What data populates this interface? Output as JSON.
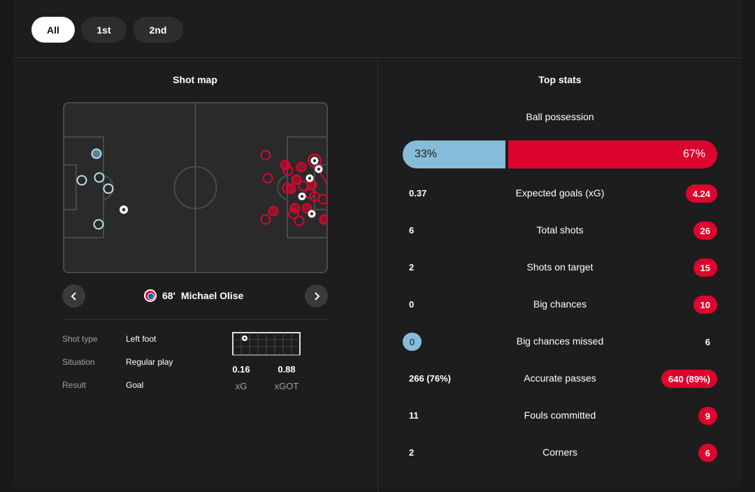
{
  "filters": {
    "all": "All",
    "first": "1st",
    "second": "2nd"
  },
  "shotmap": {
    "title": "Shot map",
    "selected_player": {
      "minute": "68'",
      "name": "Michael Olise"
    },
    "details": [
      {
        "label": "Shot type",
        "value": "Left foot"
      },
      {
        "label": "Situation",
        "value": "Regular play"
      },
      {
        "label": "Result",
        "value": "Goal"
      }
    ],
    "xg": {
      "value": "0.16",
      "label": "xG"
    },
    "xgot": {
      "value": "0.88",
      "label": "xGOT"
    }
  },
  "topstats": {
    "title": "Top stats",
    "possession": {
      "label": "Ball possession",
      "home": "33%",
      "away": "67%",
      "home_pct": 33,
      "away_pct": 67
    },
    "rows": [
      {
        "home": "0.37",
        "label": "Expected goals (xG)",
        "away": "4.24"
      },
      {
        "home": "6",
        "label": "Total shots",
        "away": "26"
      },
      {
        "home": "2",
        "label": "Shots on target",
        "away": "15"
      },
      {
        "home": "0",
        "label": "Big chances",
        "away": "10"
      },
      {
        "home": "0",
        "label": "Big chances missed",
        "away": "6"
      },
      {
        "home": "266 (76%)",
        "label": "Accurate passes",
        "away": "640 (89%)"
      },
      {
        "home": "11",
        "label": "Fouls committed",
        "away": "9"
      },
      {
        "home": "2",
        "label": "Corners",
        "away": "6"
      }
    ]
  },
  "colors": {
    "home": "#86bcd9",
    "away": "#dc052d",
    "card": "#1d1d1d"
  }
}
